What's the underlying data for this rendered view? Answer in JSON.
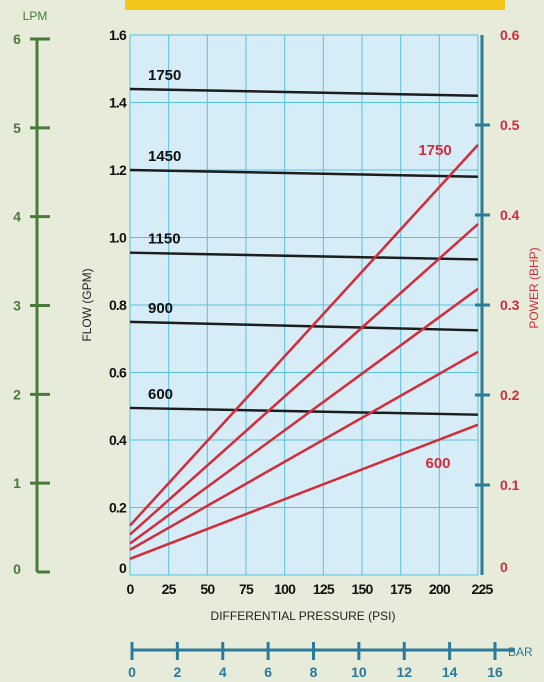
{
  "colors": {
    "background": "#e6ecd9",
    "plot_background": "#d6ecf6",
    "grid": "#59c0de",
    "flow_line": "#1c1c1c",
    "power_line": "#d42a3a",
    "lpm_axis": "#4a7a3a",
    "power_axis": "#2a7a9a",
    "bar_axis": "#2a7a9a",
    "banner": "#f5c61a",
    "label_gray": "#333333"
  },
  "banner": {
    "text": ""
  },
  "chart_data": {
    "type": "line",
    "xlabel": "DIFFERENTIAL PRESSURE  (PSI)",
    "ylabel": "FLOW  (GPM)",
    "y2label": "POWER  (BHP)",
    "x_ticks": [
      "0",
      "25",
      "50",
      "75",
      "100",
      "125",
      "150",
      "175",
      "200",
      "225"
    ],
    "xlim": [
      0,
      225
    ],
    "ylim": [
      0,
      1.6
    ],
    "y_ticks": [
      "0",
      "0.2",
      "0.4",
      "0.6",
      "0.8",
      "1.0",
      "1.2",
      "1.4",
      "1.6"
    ],
    "y2lim": [
      0,
      0.6
    ],
    "y2_ticks": [
      "0",
      "0.1",
      "0.2",
      "0.3",
      "0.4",
      "0.5",
      "0.6"
    ],
    "grid": true,
    "lpm_axis": {
      "label": "LPM",
      "range": [
        0,
        6
      ],
      "ticks": [
        "0",
        "1",
        "2",
        "3",
        "4",
        "5",
        "6"
      ]
    },
    "bar_axis": {
      "label": "BAR",
      "range": [
        0,
        16
      ],
      "ticks": [
        "0",
        "2",
        "4",
        "6",
        "8",
        "10",
        "12",
        "14",
        "16"
      ]
    },
    "flow_series": [
      {
        "name": "1750",
        "x": [
          0,
          225
        ],
        "y": [
          1.44,
          1.42
        ]
      },
      {
        "name": "1450",
        "x": [
          0,
          225
        ],
        "y": [
          1.2,
          1.18
        ]
      },
      {
        "name": "1150",
        "x": [
          0,
          225
        ],
        "y": [
          0.955,
          0.935
        ]
      },
      {
        "name": "900",
        "x": [
          0,
          225
        ],
        "y": [
          0.75,
          0.725
        ]
      },
      {
        "name": "600",
        "x": [
          0,
          225
        ],
        "y": [
          0.495,
          0.475
        ]
      }
    ],
    "power_series": [
      {
        "name": "1750",
        "x": [
          0,
          225
        ],
        "y": [
          0.055,
          0.478
        ]
      },
      {
        "name": "",
        "x": [
          0,
          225
        ],
        "y": [
          0.045,
          0.39
        ]
      },
      {
        "name": "",
        "x": [
          0,
          225
        ],
        "y": [
          0.035,
          0.318
        ]
      },
      {
        "name": "",
        "x": [
          0,
          225
        ],
        "y": [
          0.028,
          0.248
        ]
      },
      {
        "name": "600",
        "x": [
          0,
          225
        ],
        "y": [
          0.018,
          0.167
        ]
      }
    ]
  }
}
